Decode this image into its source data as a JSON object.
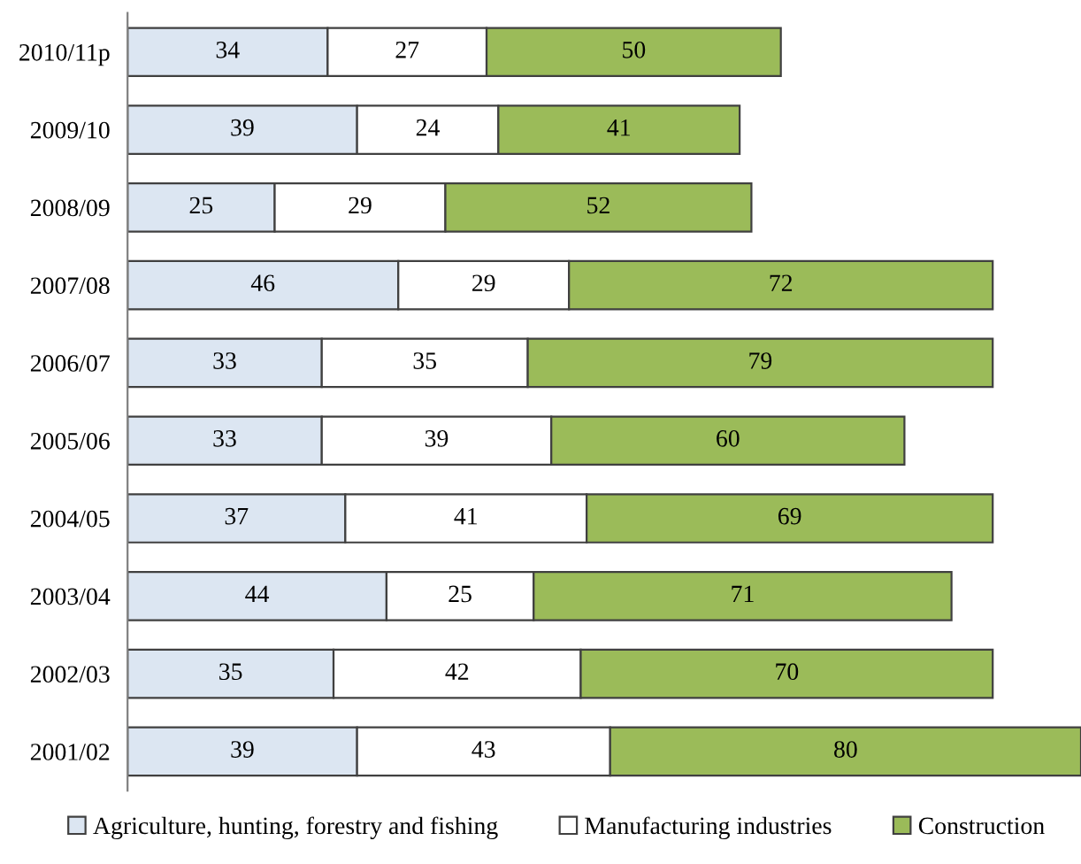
{
  "chart_data": {
    "type": "bar",
    "orientation": "horizontal",
    "stacked": true,
    "data_labels": true,
    "legend": "bottom",
    "grid": false,
    "tick_labels": "y",
    "categories": [
      "2010/11p",
      "2009/10",
      "2008/09",
      "2007/08",
      "2006/07",
      "2005/06",
      "2004/05",
      "2003/04",
      "2002/03",
      "2001/02"
    ],
    "series": [
      {
        "name": "Agriculture, hunting, forestry and fishing",
        "color": "#dce6f2",
        "values": [
          34,
          39,
          25,
          46,
          33,
          33,
          37,
          44,
          35,
          39
        ]
      },
      {
        "name": "Manufacturing industries",
        "color": "#ffffff",
        "values": [
          27,
          24,
          29,
          29,
          35,
          39,
          41,
          25,
          42,
          43
        ]
      },
      {
        "name": "Construction",
        "color": "#9bbb59",
        "values": [
          50,
          41,
          52,
          72,
          79,
          60,
          69,
          71,
          70,
          80
        ]
      }
    ]
  }
}
